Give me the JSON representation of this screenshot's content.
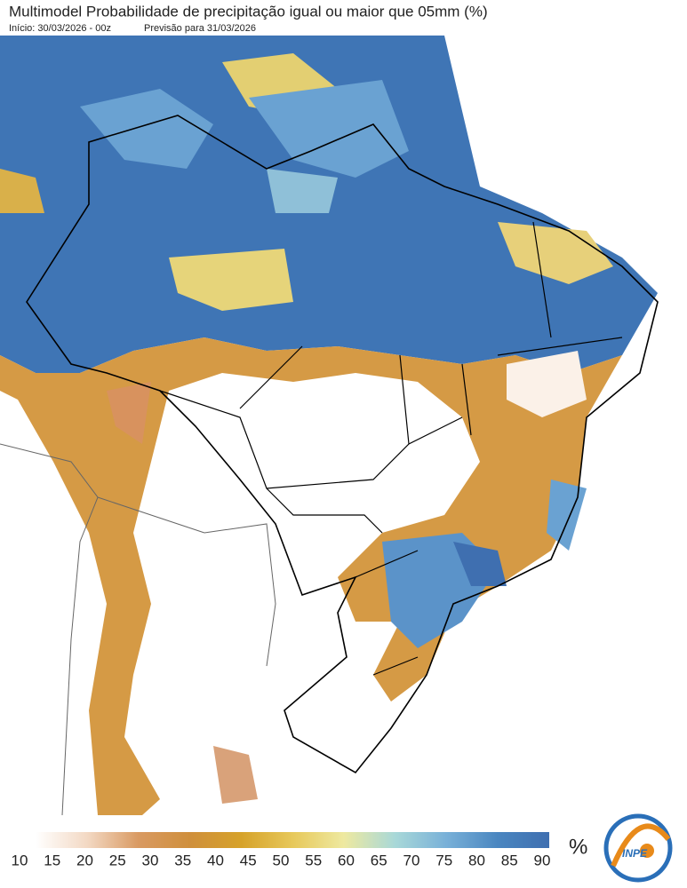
{
  "header": {
    "title": "Multimodel Probabilidade de precipitação igual ou maior que 05mm (%)",
    "start": "Início: 30/03/2026 - 00z",
    "forecast": "Previsão para 31/03/2026"
  },
  "colorbar": {
    "ticks": [
      10,
      15,
      20,
      25,
      30,
      35,
      40,
      45,
      50,
      55,
      60,
      65,
      70,
      75,
      80,
      85,
      90
    ],
    "unit": "%",
    "colors": [
      "#ffffff",
      "#f3d9c4",
      "#d99a62",
      "#cf8f3c",
      "#d6a22a",
      "#e7c85a",
      "#eee9a0",
      "#a8d8d8",
      "#78b0d8",
      "#4a86c0",
      "#3f6fb0"
    ]
  },
  "logo": {
    "text": "INPE"
  }
}
